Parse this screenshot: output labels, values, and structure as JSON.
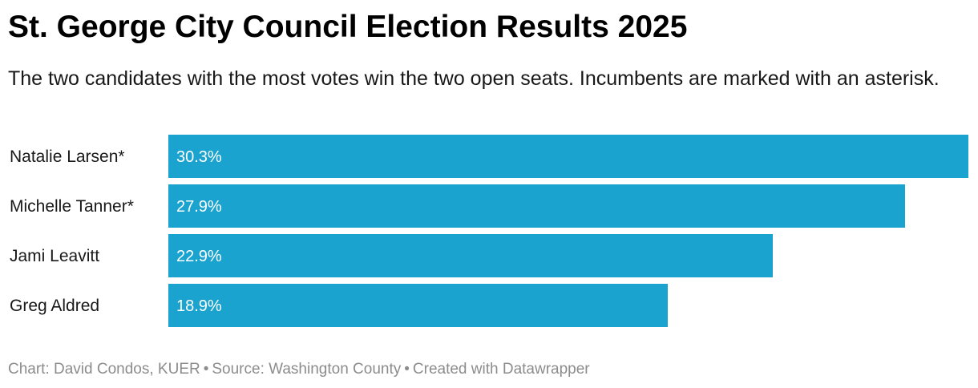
{
  "chart_data": {
    "type": "bar",
    "orientation": "horizontal",
    "title": "St. George City Council Election Results 2025",
    "subtitle": "The two candidates with the most votes win the two open seats. Incumbents are marked with an asterisk.",
    "categories": [
      "Natalie Larsen*",
      "Michelle Tanner*",
      "Jami Leavitt",
      "Greg Aldred"
    ],
    "values": [
      30.3,
      27.9,
      22.9,
      18.9
    ],
    "value_labels": [
      "30.3%",
      "27.9%",
      "22.9%",
      "18.9%"
    ],
    "xlim": [
      0,
      30.3
    ],
    "grid": false,
    "legend": "none",
    "bar_color": "#1aa3cf"
  },
  "footer": {
    "credit": "Chart: David Condos, KUER",
    "separator": "•",
    "source": "Source: Washington County",
    "tool": "Created with Datawrapper"
  }
}
